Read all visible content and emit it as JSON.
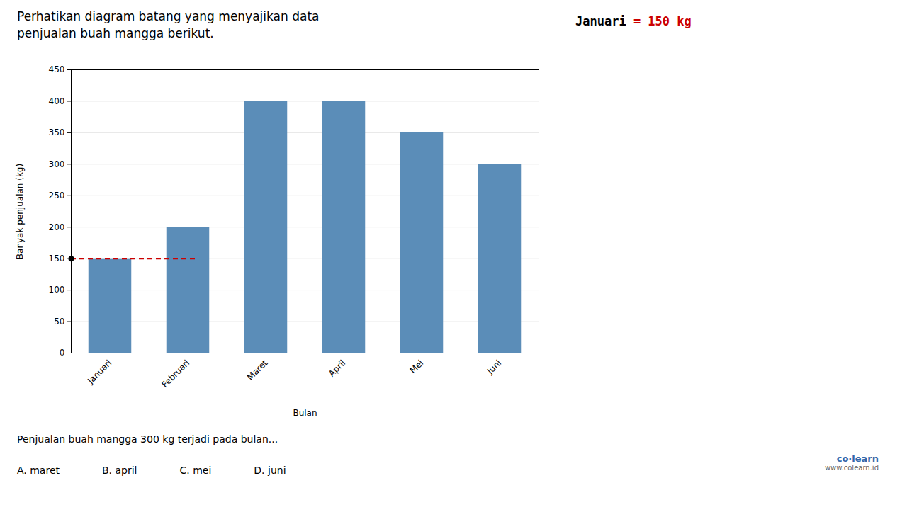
{
  "chart_data": {
    "type": "bar",
    "title": "Perhatikan diagram batang yang menyajikan data\npenjualan buah mangga berikut.",
    "xlabel": "Bulan",
    "ylabel": "Banyak penjualan (kg)",
    "categories": [
      "Januari",
      "Februari",
      "Maret",
      "April",
      "Mei",
      "Juni"
    ],
    "values": [
      150,
      200,
      400,
      400,
      350,
      300
    ],
    "color": "#5B8DB8",
    "ylim": [
      0,
      450
    ],
    "yticks": [
      0,
      50,
      100,
      150,
      200,
      250,
      300,
      350,
      400,
      450
    ],
    "grid": true,
    "reference_line": {
      "value": 150,
      "color": "#CC0000",
      "line_style": "dashed",
      "marker": "circle"
    },
    "annotations": [
      {
        "text": "Januari "
      },
      {
        "text": "= 150 kg",
        "color": "#CC0000"
      }
    ],
    "subtitle": "Penjualan buah mangga 300 kg terjadi pada bulan...",
    "answers": [
      "A. maret",
      "B. april",
      "C. mei",
      "D. juni"
    ],
    "credits": [
      "co·learn",
      "www.colearn.id"
    ]
  }
}
